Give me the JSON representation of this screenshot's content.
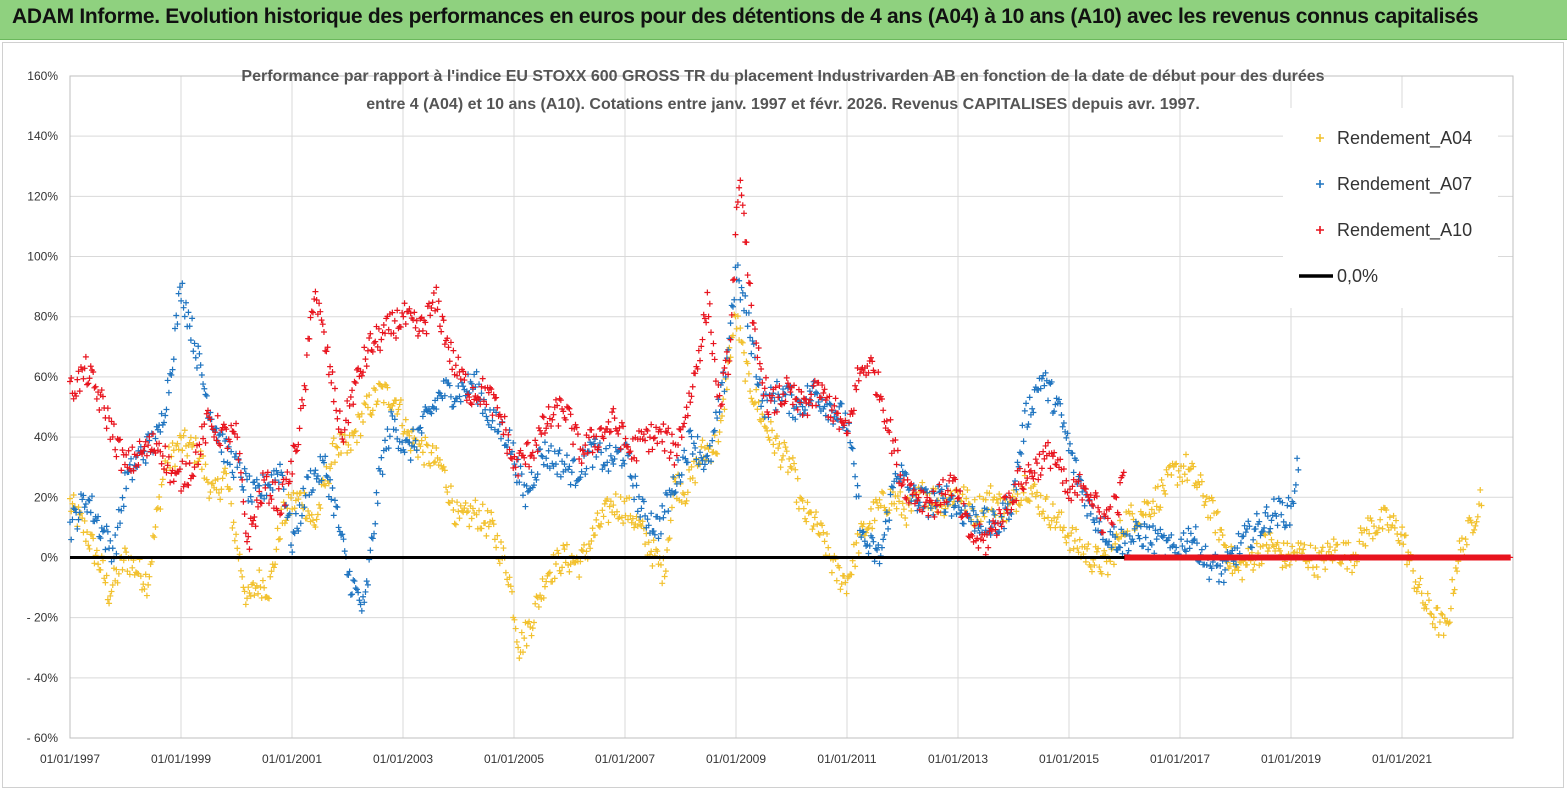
{
  "banner": {
    "title": "ADAM Informe. Evolution historique des performances en euros pour des détentions de 4 ans (A04) à 10 ans (A10) avec les revenus connus capitalisés"
  },
  "colors": {
    "banner_bg": "#8fd17f",
    "A04": "#f2c12e",
    "A07": "#1f74c0",
    "A10": "#e8141e",
    "zero_line": "#000000",
    "grid": "#d9d9d9"
  },
  "chart_data": {
    "type": "scatter",
    "title_line1": "Performance par rapport à l'indice EU STOXX 600 GROSS TR  du placement Industrivarden AB en fonction de la date de début pour des durées",
    "title_line2": "entre 4 (A04) et 10 ans (A10). Cotations entre janv. 1997 et févr. 2026. Revenus CAPITALISES depuis avr. 1997.",
    "xlabel": "",
    "ylabel": "",
    "xlim": [
      1997.0,
      2023.0
    ],
    "ylim": [
      -60,
      160
    ],
    "y_ticks": [
      -60,
      -40,
      -20,
      0,
      20,
      40,
      60,
      80,
      100,
      120,
      140,
      160
    ],
    "y_tick_labels": [
      "- 60%",
      "- 40%",
      "- 20%",
      "0%",
      "20%",
      "40%",
      "60%",
      "80%",
      "100%",
      "120%",
      "140%",
      "160%"
    ],
    "x_ticks": [
      1997,
      1999,
      2001,
      2003,
      2005,
      2007,
      2009,
      2011,
      2013,
      2015,
      2017,
      2019,
      2021
    ],
    "x_tick_labels": [
      "01/01/1997",
      "01/01/1999",
      "01/01/2001",
      "01/01/2003",
      "01/01/2005",
      "01/01/2007",
      "01/01/2009",
      "01/01/2011",
      "01/01/2013",
      "01/01/2015",
      "01/01/2017",
      "01/01/2019",
      "01/01/2021"
    ],
    "legend": [
      "Rendement_A04",
      "Rendement_A07",
      "Rendement_A10",
      "0,0%"
    ],
    "legend_position": "top-right",
    "series": [
      {
        "name": "Rendement_A04",
        "x_end": 2022.45,
        "x": [
          1997.0,
          1997.3,
          1997.6,
          1997.7,
          1998.0,
          1998.4,
          1998.7,
          1999.0,
          1999.3,
          1999.6,
          1999.8,
          2000.0,
          2000.2,
          2000.4,
          2000.6,
          2000.8,
          2001.0,
          2001.2,
          2001.4,
          2001.6,
          2001.8,
          2002.0,
          2002.3,
          2002.6,
          2002.9,
          2003.1,
          2003.4,
          2003.7,
          2004.0,
          2004.3,
          2004.6,
          2004.9,
          2005.1,
          2005.3,
          2005.6,
          2005.9,
          2006.2,
          2006.5,
          2006.8,
          2007.1,
          2007.4,
          2007.7,
          2007.9,
          2008.1,
          2008.4,
          2008.7,
          2008.9,
          2009.0,
          2009.2,
          2009.5,
          2009.8,
          2010.0,
          2010.2,
          2010.4,
          2010.6,
          2010.8,
          2011.0,
          2011.2,
          2011.5,
          2011.8,
          2012.1,
          2012.4,
          2012.7,
          2013.0,
          2013.3,
          2013.6,
          2013.9,
          2014.2,
          2014.5,
          2014.8,
          2015.1,
          2015.4,
          2015.7,
          2016.0,
          2016.3,
          2016.6,
          2016.9,
          2017.1,
          2017.4,
          2017.7,
          2018.0,
          2018.3,
          2018.6,
          2018.9,
          2019.2,
          2019.5,
          2019.8,
          2020.1,
          2020.4,
          2020.7,
          2021.0,
          2021.2,
          2021.4,
          2021.6,
          2021.8,
          2022.0,
          2022.2,
          2022.45
        ],
        "values": [
          18,
          8,
          -5,
          -12,
          0,
          -8,
          30,
          38,
          35,
          20,
          28,
          5,
          -15,
          -8,
          -10,
          12,
          18,
          20,
          10,
          25,
          38,
          35,
          48,
          55,
          52,
          40,
          35,
          30,
          12,
          15,
          10,
          -5,
          -30,
          -22,
          -5,
          0,
          -2,
          10,
          18,
          15,
          5,
          -5,
          25,
          22,
          35,
          38,
          70,
          80,
          60,
          45,
          35,
          30,
          15,
          12,
          5,
          -5,
          -8,
          5,
          15,
          20,
          15,
          22,
          18,
          22,
          15,
          20,
          15,
          25,
          18,
          12,
          5,
          0,
          -3,
          12,
          15,
          20,
          28,
          30,
          22,
          10,
          -5,
          0,
          5,
          0,
          2,
          -2,
          3,
          0,
          10,
          12,
          8,
          -5,
          -15,
          -20,
          -25,
          0,
          8,
          22
        ],
        "spread": 5
      },
      {
        "name": "Rendement_A07",
        "x_end": 2019.15,
        "x": [
          1997.0,
          1997.3,
          1997.6,
          1997.8,
          1998.0,
          1998.3,
          1998.6,
          1998.8,
          1999.0,
          1999.2,
          1999.5,
          1999.8,
          2000.0,
          2000.3,
          2000.6,
          2000.8,
          2001.0,
          2001.3,
          2001.6,
          2001.8,
          2002.0,
          2002.3,
          2002.6,
          2002.8,
          2003.1,
          2003.4,
          2003.7,
          2004.0,
          2004.3,
          2004.6,
          2004.9,
          2005.2,
          2005.5,
          2005.8,
          2006.1,
          2006.4,
          2006.7,
          2007.0,
          2007.3,
          2007.6,
          2007.9,
          2008.2,
          2008.5,
          2008.8,
          2009.0,
          2009.2,
          2009.5,
          2009.8,
          2010.1,
          2010.4,
          2010.7,
          2011.0,
          2011.3,
          2011.6,
          2011.9,
          2012.2,
          2012.5,
          2012.8,
          2013.1,
          2013.4,
          2013.7,
          2014.0,
          2014.2,
          2014.5,
          2014.8,
          2015.1,
          2015.4,
          2015.7,
          2016.0,
          2016.3,
          2016.6,
          2016.9,
          2017.2,
          2017.5,
          2017.8,
          2018.1,
          2018.4,
          2018.7,
          2019.0,
          2019.15
        ],
        "values": [
          10,
          20,
          8,
          2,
          25,
          35,
          40,
          60,
          90,
          75,
          50,
          35,
          30,
          20,
          25,
          30,
          5,
          25,
          30,
          15,
          -5,
          -18,
          30,
          45,
          35,
          45,
          55,
          55,
          58,
          45,
          40,
          20,
          35,
          32,
          28,
          35,
          32,
          35,
          15,
          10,
          25,
          40,
          30,
          60,
          95,
          80,
          50,
          55,
          50,
          55,
          50,
          45,
          5,
          0,
          30,
          20,
          18,
          20,
          15,
          12,
          10,
          20,
          45,
          60,
          50,
          30,
          15,
          8,
          5,
          8,
          5,
          2,
          8,
          -2,
          -5,
          5,
          10,
          15,
          15,
          35
        ],
        "spread": 5
      },
      {
        "name": "Rendement_A10",
        "x_end": 2022.95,
        "x": [
          1997.0,
          1997.3,
          1997.6,
          1997.8,
          1998.0,
          1998.3,
          1998.6,
          1998.9,
          1999.2,
          1999.5,
          1999.8,
          2000.0,
          2000.2,
          2000.5,
          2000.8,
          2001.0,
          2001.2,
          2001.4,
          2001.6,
          2001.9,
          2002.1,
          2002.4,
          2002.7,
          2003.0,
          2003.3,
          2003.6,
          2003.9,
          2004.2,
          2004.5,
          2004.8,
          2005.0,
          2005.3,
          2005.6,
          2005.9,
          2006.2,
          2006.5,
          2006.8,
          2007.1,
          2007.4,
          2007.7,
          2007.9,
          2008.2,
          2008.5,
          2008.7,
          2008.9,
          2009.0,
          2009.1,
          2009.3,
          2009.6,
          2009.9,
          2010.2,
          2010.5,
          2010.8,
          2011.0,
          2011.2,
          2011.4,
          2011.6,
          2011.8,
          2012.0,
          2012.3,
          2012.6,
          2012.9,
          2013.2,
          2013.5,
          2013.8,
          2014.1,
          2014.4,
          2014.7,
          2015.0,
          2015.3,
          2015.6,
          2015.9,
          2016.0
        ],
        "values": [
          55,
          62,
          50,
          40,
          30,
          35,
          38,
          25,
          30,
          45,
          40,
          40,
          5,
          25,
          18,
          30,
          50,
          90,
          70,
          40,
          55,
          70,
          75,
          80,
          75,
          85,
          65,
          55,
          55,
          45,
          30,
          35,
          45,
          50,
          35,
          40,
          45,
          35,
          40,
          40,
          35,
          55,
          85,
          50,
          70,
          110,
          125,
          75,
          50,
          55,
          50,
          55,
          48,
          40,
          60,
          65,
          55,
          40,
          25,
          20,
          18,
          25,
          8,
          5,
          15,
          25,
          30,
          35,
          20,
          25,
          12,
          18,
          30
        ],
        "spread": 5
      },
      {
        "name": "0,0%",
        "type": "line",
        "x_from": 1997.0,
        "x_to": 2023.0,
        "value": 0
      }
    ]
  }
}
